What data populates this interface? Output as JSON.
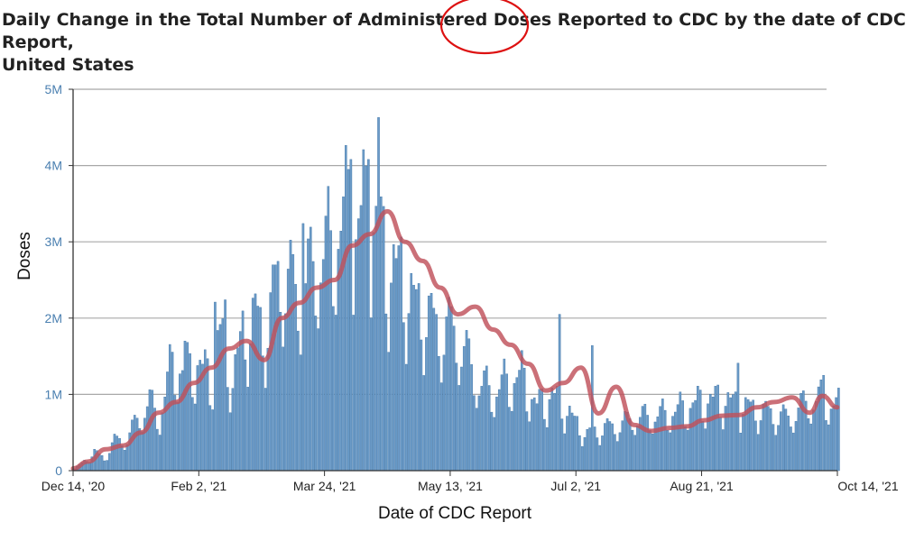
{
  "title_line1": "Daily Change in the Total Number of Administered Doses Reported to CDC by the date of CDC Report,",
  "title_line2": "United States",
  "colors": {
    "bar": "#6b9bc8",
    "bar_stroke": "#3f74a6",
    "moving_average": "#c0505a",
    "grid": "#a8a8a8",
    "annotation_circle": "#dd1111",
    "y_tick_text": "#4a7fb0"
  },
  "annotation": {
    "shape": "circle",
    "target_text": "Doses"
  },
  "chart_data": {
    "type": "bar",
    "title": "Daily Change in the Total Number of Administered Doses Reported to CDC by the date of CDC Report, United States",
    "xlabel": "Date of CDC Report",
    "ylabel": "Doses",
    "x_start": "2020-12-14",
    "x_end": "2021-10-14",
    "ylim": [
      0,
      5000000
    ],
    "grid": true,
    "yticks": [
      {
        "value": 0,
        "label": "0"
      },
      {
        "value": 1000000,
        "label": "1M"
      },
      {
        "value": 2000000,
        "label": "2M"
      },
      {
        "value": 3000000,
        "label": "3M"
      },
      {
        "value": 4000000,
        "label": "4M"
      },
      {
        "value": 5000000,
        "label": "5M"
      }
    ],
    "xticks": [
      {
        "date": "2020-12-14",
        "label": "Dec 14, '20"
      },
      {
        "date": "2021-02-02",
        "label": "Feb 2, '21"
      },
      {
        "date": "2021-03-24",
        "label": "Mar 24, '21"
      },
      {
        "date": "2021-05-13",
        "label": "May 13, '21"
      },
      {
        "date": "2021-07-02",
        "label": "Jul 2, '21"
      },
      {
        "date": "2021-08-21",
        "label": "Aug 21, '21"
      },
      {
        "date": "2021-10-14",
        "label": "Oct 14, '21"
      }
    ],
    "bar_series_anchors": [
      [
        "2020-12-14",
        30000
      ],
      [
        "2020-12-18",
        120000
      ],
      [
        "2020-12-22",
        250000
      ],
      [
        "2020-12-26",
        160000
      ],
      [
        "2020-12-30",
        400000
      ],
      [
        "2021-01-04",
        420000
      ],
      [
        "2021-01-08",
        680000
      ],
      [
        "2021-01-13",
        900000
      ],
      [
        "2021-01-17",
        700000
      ],
      [
        "2021-01-22",
        1450000
      ],
      [
        "2021-01-27",
        1300000
      ],
      [
        "2021-02-01",
        1450000
      ],
      [
        "2021-02-06",
        1200000
      ],
      [
        "2021-02-10",
        1850000
      ],
      [
        "2021-02-15",
        1200000
      ],
      [
        "2021-02-19",
        1800000
      ],
      [
        "2021-02-24",
        2050000
      ],
      [
        "2021-02-28",
        1800000
      ],
      [
        "2021-03-05",
        2600000
      ],
      [
        "2021-03-10",
        2500000
      ],
      [
        "2021-03-14",
        2300000
      ],
      [
        "2021-03-19",
        2700000
      ],
      [
        "2021-03-24",
        2900000
      ],
      [
        "2021-03-28",
        3100000
      ],
      [
        "2021-04-01",
        3350000
      ],
      [
        "2021-04-05",
        3200000
      ],
      [
        "2021-04-09",
        3450000
      ],
      [
        "2021-04-13",
        3250000
      ],
      [
        "2021-04-18",
        2700000
      ],
      [
        "2021-04-23",
        2600000
      ],
      [
        "2021-04-28",
        2200000
      ],
      [
        "2021-05-03",
        2100000
      ],
      [
        "2021-05-08",
        1850000
      ],
      [
        "2021-05-13",
        1900000
      ],
      [
        "2021-05-18",
        1600000
      ],
      [
        "2021-05-24",
        1150000
      ],
      [
        "2021-05-30",
        1050000
      ],
      [
        "2021-06-05",
        1200000
      ],
      [
        "2021-06-10",
        1250000
      ],
      [
        "2021-06-16",
        850000
      ],
      [
        "2021-06-21",
        1000000
      ],
      [
        "2021-06-25",
        950000
      ],
      [
        "2021-07-01",
        650000
      ],
      [
        "2021-07-06",
        480000
      ],
      [
        "2021-07-12",
        560000
      ],
      [
        "2021-07-18",
        600000
      ],
      [
        "2021-07-25",
        700000
      ],
      [
        "2021-08-01",
        720000
      ],
      [
        "2021-08-08",
        760000
      ],
      [
        "2021-08-15",
        850000
      ],
      [
        "2021-08-21",
        920000
      ],
      [
        "2021-08-28",
        950000
      ],
      [
        "2021-09-03",
        880000
      ],
      [
        "2021-09-10",
        820000
      ],
      [
        "2021-09-17",
        760000
      ],
      [
        "2021-09-24",
        700000
      ],
      [
        "2021-10-01",
        900000
      ],
      [
        "2021-10-07",
        950000
      ],
      [
        "2021-10-14",
        850000
      ]
    ],
    "bar_spikes": [
      [
        "2021-04-14",
        4630000
      ],
      [
        "2021-04-03",
        4080000
      ],
      [
        "2021-04-02",
        3950000
      ],
      [
        "2021-04-10",
        4080000
      ],
      [
        "2021-03-15",
        3240000
      ],
      [
        "2021-02-12",
        2240000
      ],
      [
        "2021-02-08",
        2210000
      ],
      [
        "2021-06-25",
        2050000
      ],
      [
        "2021-07-08",
        1640000
      ],
      [
        "2021-09-04",
        1410000
      ],
      [
        "2021-10-08",
        1250000
      ],
      [
        "2021-01-27",
        1700000
      ]
    ],
    "moving_average": [
      [
        "2020-12-14",
        30000
      ],
      [
        "2020-12-20",
        120000
      ],
      [
        "2020-12-27",
        280000
      ],
      [
        "2021-01-03",
        330000
      ],
      [
        "2021-01-10",
        500000
      ],
      [
        "2021-01-17",
        760000
      ],
      [
        "2021-01-24",
        900000
      ],
      [
        "2021-01-31",
        1150000
      ],
      [
        "2021-02-07",
        1350000
      ],
      [
        "2021-02-14",
        1600000
      ],
      [
        "2021-02-21",
        1700000
      ],
      [
        "2021-02-28",
        1450000
      ],
      [
        "2021-03-07",
        2000000
      ],
      [
        "2021-03-14",
        2200000
      ],
      [
        "2021-03-21",
        2400000
      ],
      [
        "2021-03-28",
        2500000
      ],
      [
        "2021-04-04",
        2950000
      ],
      [
        "2021-04-11",
        3100000
      ],
      [
        "2021-04-18",
        3400000
      ],
      [
        "2021-04-25",
        3000000
      ],
      [
        "2021-05-02",
        2750000
      ],
      [
        "2021-05-09",
        2400000
      ],
      [
        "2021-05-16",
        2050000
      ],
      [
        "2021-05-23",
        2150000
      ],
      [
        "2021-05-30",
        1850000
      ],
      [
        "2021-06-06",
        1650000
      ],
      [
        "2021-06-13",
        1400000
      ],
      [
        "2021-06-20",
        1050000
      ],
      [
        "2021-06-27",
        1150000
      ],
      [
        "2021-07-04",
        1350000
      ],
      [
        "2021-07-11",
        750000
      ],
      [
        "2021-07-18",
        1100000
      ],
      [
        "2021-07-25",
        600000
      ],
      [
        "2021-08-01",
        520000
      ],
      [
        "2021-08-08",
        560000
      ],
      [
        "2021-08-15",
        580000
      ],
      [
        "2021-08-22",
        660000
      ],
      [
        "2021-08-29",
        720000
      ],
      [
        "2021-09-05",
        730000
      ],
      [
        "2021-09-12",
        830000
      ],
      [
        "2021-09-19",
        900000
      ],
      [
        "2021-09-26",
        960000
      ],
      [
        "2021-10-03",
        760000
      ],
      [
        "2021-10-08",
        980000
      ],
      [
        "2021-10-14",
        830000
      ]
    ]
  }
}
